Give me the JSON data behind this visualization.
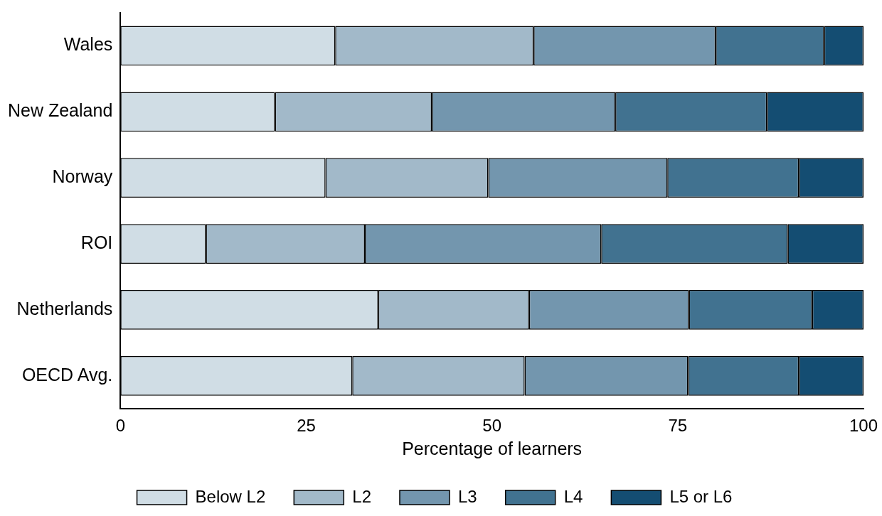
{
  "chart_data": {
    "type": "bar",
    "orientation": "horizontal",
    "stacked": true,
    "xlabel": "Percentage of learners",
    "categories": [
      "Wales",
      "New Zealand",
      "Norway",
      "ROI",
      "Netherlands",
      "OECD Avg."
    ],
    "series": [
      {
        "name": "Below L2",
        "color": "#d0dde5",
        "values": [
          28.9,
          20.8,
          27.6,
          11.5,
          34.7,
          31.2
        ]
      },
      {
        "name": "L2",
        "color": "#a2b9c9",
        "values": [
          26.7,
          21.1,
          21.9,
          21.4,
          20.3,
          23.2
        ]
      },
      {
        "name": "L3",
        "color": "#7396ae",
        "values": [
          24.5,
          24.7,
          24.1,
          31.8,
          21.5,
          22.0
        ]
      },
      {
        "name": "L4",
        "color": "#417290",
        "values": [
          14.6,
          20.4,
          17.7,
          25.1,
          16.6,
          14.9
        ]
      },
      {
        "name": "L5 or L6",
        "color": "#144d72",
        "values": [
          5.3,
          13.0,
          8.7,
          10.2,
          6.9,
          8.7
        ]
      }
    ],
    "xlim": [
      0,
      100
    ],
    "xticks": [
      0,
      25,
      50,
      75,
      100
    ],
    "grid": false,
    "legend": "bottom"
  }
}
